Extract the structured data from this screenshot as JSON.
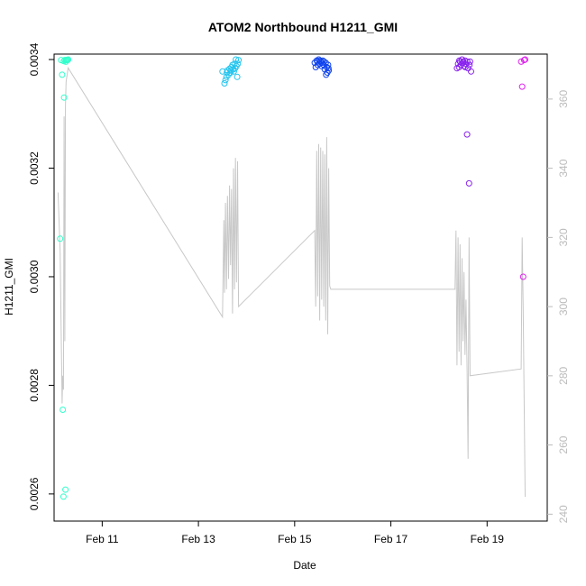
{
  "chart_data": {
    "type": "scatter",
    "title": "ATOM2 Northbound H1211_GMI",
    "xlabel": "Date",
    "ylabel": "H1211_GMI",
    "x_ticks": [
      {
        "date": "2016-02-11",
        "label": "Feb 11"
      },
      {
        "date": "2016-02-13",
        "label": "Feb 13"
      },
      {
        "date": "2016-02-15",
        "label": "Feb 15"
      },
      {
        "date": "2016-02-17",
        "label": "Feb 17"
      },
      {
        "date": "2016-02-19",
        "label": "Feb 19"
      }
    ],
    "xlim": [
      "2016-02-10 00:00",
      "2016-02-20 06:00"
    ],
    "ylim": [
      0.00255,
      0.00341
    ],
    "y_ticks": [
      {
        "value": 0.0026,
        "label": "0.0026"
      },
      {
        "value": 0.0028,
        "label": "0.0028"
      },
      {
        "value": 0.003,
        "label": "0.0030"
      },
      {
        "value": 0.0032,
        "label": "0.0032"
      },
      {
        "value": 0.0034,
        "label": "0.0034"
      }
    ],
    "y2lim": [
      238,
      373
    ],
    "y2_ticks": [
      {
        "value": 240,
        "label": "240"
      },
      {
        "value": 260,
        "label": "260"
      },
      {
        "value": 280,
        "label": "280"
      },
      {
        "value": 300,
        "label": "300"
      },
      {
        "value": 320,
        "label": "320"
      },
      {
        "value": 340,
        "label": "340"
      },
      {
        "value": 360,
        "label": "360"
      }
    ],
    "colors": {
      "line": "#c8c8c8",
      "axis": "#000000",
      "right_axis": "#bbbbbb",
      "flights": [
        "#33ffcc",
        "#22c4ee",
        "#1144ee",
        "#8822ee",
        "#dd22ee"
      ]
    },
    "series": [
      {
        "points": [
          [
            "2016-02-10 03:00",
            0.00307
          ],
          [
            "2016-02-10 03:30",
            0.003399
          ],
          [
            "2016-02-10 04:00",
            0.003372
          ],
          [
            "2016-02-10 04:20",
            0.002755
          ],
          [
            "2016-02-10 04:40",
            0.002595
          ],
          [
            "2016-02-10 05:00",
            0.00333
          ],
          [
            "2016-02-10 05:20",
            0.003399
          ],
          [
            "2016-02-10 05:40",
            0.002608
          ],
          [
            "2016-02-10 06:00",
            0.003399
          ],
          [
            "2016-02-10 06:20",
            0.003399
          ],
          [
            "2016-02-10 06:40",
            0.003399
          ],
          [
            "2016-02-10 07:00",
            0.0034
          ],
          [
            "2016-02-10 04:50",
            0.003397
          ],
          [
            "2016-02-10 05:50",
            0.003396
          ]
        ]
      },
      {
        "points": [
          [
            "2016-02-13 12:00",
            0.003378
          ],
          [
            "2016-02-13 13:00",
            0.003356
          ],
          [
            "2016-02-13 13:30",
            0.003362
          ],
          [
            "2016-02-13 14:00",
            0.003368
          ],
          [
            "2016-02-13 14:30",
            0.00338
          ],
          [
            "2016-02-13 15:00",
            0.003372
          ],
          [
            "2016-02-13 15:30",
            0.003383
          ],
          [
            "2016-02-13 16:00",
            0.003376
          ],
          [
            "2016-02-13 16:30",
            0.003386
          ],
          [
            "2016-02-13 17:00",
            0.00339
          ],
          [
            "2016-02-13 17:30",
            0.003382
          ],
          [
            "2016-02-13 18:00",
            0.003392
          ],
          [
            "2016-02-13 18:20",
            0.003384
          ],
          [
            "2016-02-13 18:40",
            0.0034
          ],
          [
            "2016-02-13 19:00",
            0.003388
          ],
          [
            "2016-02-13 19:20",
            0.003368
          ],
          [
            "2016-02-13 19:40",
            0.003392
          ],
          [
            "2016-02-13 20:00",
            0.003399
          ],
          [
            "2016-02-13 14:10",
            0.003376
          ],
          [
            "2016-02-13 16:10",
            0.00338
          ],
          [
            "2016-02-13 17:40",
            0.003378
          ]
        ]
      },
      {
        "points": [
          [
            "2016-02-15 10:00",
            0.003394
          ],
          [
            "2016-02-15 10:30",
            0.003386
          ],
          [
            "2016-02-15 11:00",
            0.003398
          ],
          [
            "2016-02-15 11:30",
            0.00339
          ],
          [
            "2016-02-15 12:00",
            0.0034
          ],
          [
            "2016-02-15 12:30",
            0.003392
          ],
          [
            "2016-02-15 13:00",
            0.003396
          ],
          [
            "2016-02-15 13:30",
            0.003388
          ],
          [
            "2016-02-15 14:00",
            0.003398
          ],
          [
            "2016-02-15 14:30",
            0.00339
          ],
          [
            "2016-02-15 15:00",
            0.003382
          ],
          [
            "2016-02-15 15:30",
            0.003394
          ],
          [
            "2016-02-15 16:00",
            0.003386
          ],
          [
            "2016-02-15 16:20",
            0.003376
          ],
          [
            "2016-02-15 16:40",
            0.00339
          ],
          [
            "2016-02-15 17:00",
            0.00338
          ],
          [
            "2016-02-15 11:20",
            0.003396
          ],
          [
            "2016-02-15 12:40",
            0.003398
          ],
          [
            "2016-02-15 13:40",
            0.003394
          ],
          [
            "2016-02-15 14:40",
            0.003396
          ],
          [
            "2016-02-15 15:40",
            0.003372
          ],
          [
            "2016-02-15 16:50",
            0.003384
          ]
        ]
      },
      {
        "points": [
          [
            "2016-02-18 09:00",
            0.003384
          ],
          [
            "2016-02-18 09:30",
            0.003392
          ],
          [
            "2016-02-18 10:00",
            0.003386
          ],
          [
            "2016-02-18 10:30",
            0.003396
          ],
          [
            "2016-02-18 11:00",
            0.00339
          ],
          [
            "2016-02-18 11:30",
            0.0034
          ],
          [
            "2016-02-18 12:00",
            0.003394
          ],
          [
            "2016-02-18 12:30",
            0.003388
          ],
          [
            "2016-02-18 13:00",
            0.003398
          ],
          [
            "2016-02-18 13:30",
            0.003392
          ],
          [
            "2016-02-18 14:00",
            0.003262
          ],
          [
            "2016-02-18 14:30",
            0.003384
          ],
          [
            "2016-02-18 15:00",
            0.003172
          ],
          [
            "2016-02-18 15:30",
            0.003396
          ],
          [
            "2016-02-18 16:00",
            0.003378
          ],
          [
            "2016-02-18 10:10",
            0.003398
          ],
          [
            "2016-02-18 12:10",
            0.003396
          ],
          [
            "2016-02-18 13:10",
            0.003386
          ],
          [
            "2016-02-18 14:10",
            0.003396
          ],
          [
            "2016-02-18 15:10",
            0.00339
          ]
        ]
      },
      {
        "points": [
          [
            "2016-02-19 17:00",
            0.003396
          ],
          [
            "2016-02-19 17:30",
            0.00335
          ],
          [
            "2016-02-19 18:00",
            0.003
          ],
          [
            "2016-02-19 18:30",
            0.003399
          ],
          [
            "2016-02-19 19:00",
            0.0034
          ]
        ]
      }
    ],
    "right_axis_line": [
      [
        "2016-02-10 02:00",
        333
      ],
      [
        "2016-02-10 03:00",
        316
      ],
      [
        "2016-02-10 04:00",
        272
      ],
      [
        "2016-02-10 04:20",
        280
      ],
      [
        "2016-02-10 04:40",
        276
      ],
      [
        "2016-02-10 05:00",
        355
      ],
      [
        "2016-02-10 05:20",
        290
      ],
      [
        "2016-02-10 05:40",
        358
      ],
      [
        "2016-02-10 06:00",
        365
      ],
      [
        "2016-02-10 07:00",
        369
      ],
      [
        "2016-02-13 12:00",
        297
      ],
      [
        "2016-02-13 12:40",
        325
      ],
      [
        "2016-02-13 13:00",
        304
      ],
      [
        "2016-02-13 13:30",
        330
      ],
      [
        "2016-02-13 14:00",
        305
      ],
      [
        "2016-02-13 14:30",
        332
      ],
      [
        "2016-02-13 15:00",
        308
      ],
      [
        "2016-02-13 15:30",
        335
      ],
      [
        "2016-02-13 16:00",
        312
      ],
      [
        "2016-02-13 16:30",
        334
      ],
      [
        "2016-02-13 17:00",
        298
      ],
      [
        "2016-02-13 17:30",
        340
      ],
      [
        "2016-02-13 18:00",
        305
      ],
      [
        "2016-02-13 18:30",
        343
      ],
      [
        "2016-02-13 19:00",
        307
      ],
      [
        "2016-02-13 19:30",
        342
      ],
      [
        "2016-02-13 20:00",
        300
      ],
      [
        "2016-02-15 10:00",
        322
      ],
      [
        "2016-02-15 10:30",
        300
      ],
      [
        "2016-02-15 11:00",
        345
      ],
      [
        "2016-02-15 11:30",
        303
      ],
      [
        "2016-02-15 12:00",
        347
      ],
      [
        "2016-02-15 12:30",
        296
      ],
      [
        "2016-02-15 13:00",
        346
      ],
      [
        "2016-02-15 13:30",
        302
      ],
      [
        "2016-02-15 14:00",
        345
      ],
      [
        "2016-02-15 14:30",
        300
      ],
      [
        "2016-02-15 15:00",
        344
      ],
      [
        "2016-02-15 15:30",
        296
      ],
      [
        "2016-02-15 16:00",
        349
      ],
      [
        "2016-02-15 16:30",
        292
      ],
      [
        "2016-02-15 17:00",
        340
      ],
      [
        "2016-02-15 17:30",
        306
      ],
      [
        "2016-02-15 18:00",
        305
      ],
      [
        "2016-02-18 08:00",
        305
      ],
      [
        "2016-02-18 08:30",
        322
      ],
      [
        "2016-02-18 09:00",
        283
      ],
      [
        "2016-02-18 09:30",
        320
      ],
      [
        "2016-02-18 10:00",
        287
      ],
      [
        "2016-02-18 10:30",
        318
      ],
      [
        "2016-02-18 11:00",
        283
      ],
      [
        "2016-02-18 11:30",
        314
      ],
      [
        "2016-02-18 12:00",
        290
      ],
      [
        "2016-02-18 12:30",
        310
      ],
      [
        "2016-02-18 13:00",
        286
      ],
      [
        "2016-02-18 13:30",
        302
      ],
      [
        "2016-02-18 14:00",
        282
      ],
      [
        "2016-02-18 14:30",
        256
      ],
      [
        "2016-02-18 15:00",
        320
      ],
      [
        "2016-02-18 15:30",
        280
      ],
      [
        "2016-02-19 17:00",
        282
      ],
      [
        "2016-02-19 17:30",
        320
      ],
      [
        "2016-02-19 18:00",
        300
      ],
      [
        "2016-02-19 19:00",
        245
      ]
    ]
  }
}
